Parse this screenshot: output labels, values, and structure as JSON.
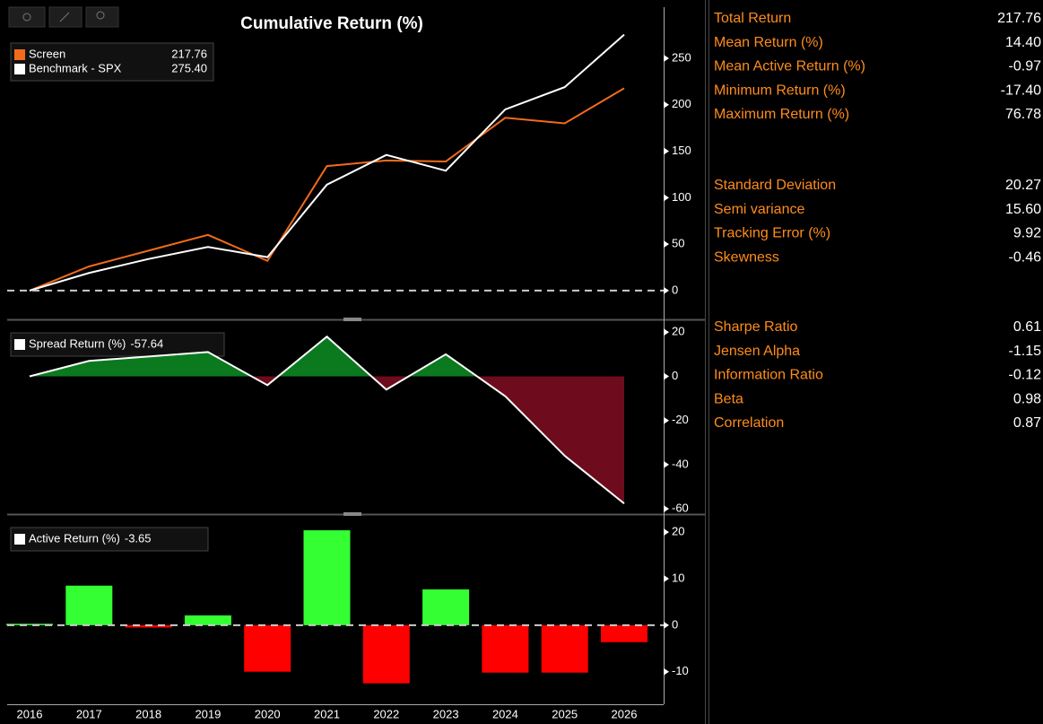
{
  "chart_data": [
    {
      "type": "line",
      "title": "Cumulative Return (%)",
      "series": [
        {
          "name": "Screen",
          "color": "#f26b1d",
          "legend_label": "217.76",
          "values": [
            0,
            26,
            43,
            60,
            32,
            134,
            140,
            139,
            186,
            180,
            217.76
          ]
        },
        {
          "name": "Benchmark - SPX",
          "color": "#ffffff",
          "legend_label": "275.40",
          "values": [
            0,
            19,
            34,
            47,
            36,
            114,
            146,
            129,
            195,
            219,
            275.4
          ]
        }
      ],
      "ylim": [
        -30,
        305
      ],
      "yticks": [
        0,
        50,
        100,
        150,
        200,
        250
      ],
      "zero_line": true
    },
    {
      "type": "area",
      "series": [
        {
          "name": "Spread Return (%)",
          "color": "#ffffff",
          "positive_color": "#0b7a1f",
          "negative_color": "#6e0c1d",
          "legend_label": "-57.64",
          "values": [
            0,
            7,
            9,
            11,
            -4,
            18,
            -6,
            10,
            -9,
            -36,
            -57.64
          ]
        }
      ],
      "ylim": [
        -62,
        25
      ],
      "yticks": [
        -60,
        -40,
        -20,
        0,
        20
      ]
    },
    {
      "type": "bar",
      "categories": [
        "2016",
        "2017",
        "2018",
        "2019",
        "2020",
        "2021",
        "2022",
        "2023",
        "2024",
        "2025",
        "2026"
      ],
      "series": [
        {
          "name": "Active Return (%)",
          "positive_color": "#33ff33",
          "negative_color": "#ff0000",
          "legend_label": "-3.65",
          "values": [
            0.3,
            8.5,
            -0.5,
            2.1,
            -10,
            20.4,
            -12.5,
            7.7,
            -10.2,
            -10.2,
            -3.65
          ]
        }
      ],
      "ylim": [
        -17,
        23.5
      ],
      "yticks": [
        -10,
        0,
        10,
        20
      ],
      "zero_line": true
    }
  ],
  "stats": {
    "groups": [
      [
        {
          "label": "Total Return",
          "value": "217.76"
        },
        {
          "label": "Mean Return (%)",
          "value": "14.40"
        },
        {
          "label": "Mean Active Return (%)",
          "value": "-0.97"
        },
        {
          "label": "Minimum Return (%)",
          "value": "-17.40"
        },
        {
          "label": "Maximum Return (%)",
          "value": "76.78"
        }
      ],
      [
        {
          "label": "Standard Deviation",
          "value": "20.27"
        },
        {
          "label": "Semi variance",
          "value": "15.60"
        },
        {
          "label": "Tracking Error (%)",
          "value": "9.92"
        },
        {
          "label": "Skewness",
          "value": "-0.46"
        }
      ],
      [
        {
          "label": "Sharpe Ratio",
          "value": "0.61"
        },
        {
          "label": "Jensen Alpha",
          "value": "-1.15"
        },
        {
          "label": "Information Ratio",
          "value": "-0.12"
        },
        {
          "label": "Beta",
          "value": "0.98"
        },
        {
          "label": "Correlation",
          "value": "0.87"
        }
      ]
    ]
  }
}
